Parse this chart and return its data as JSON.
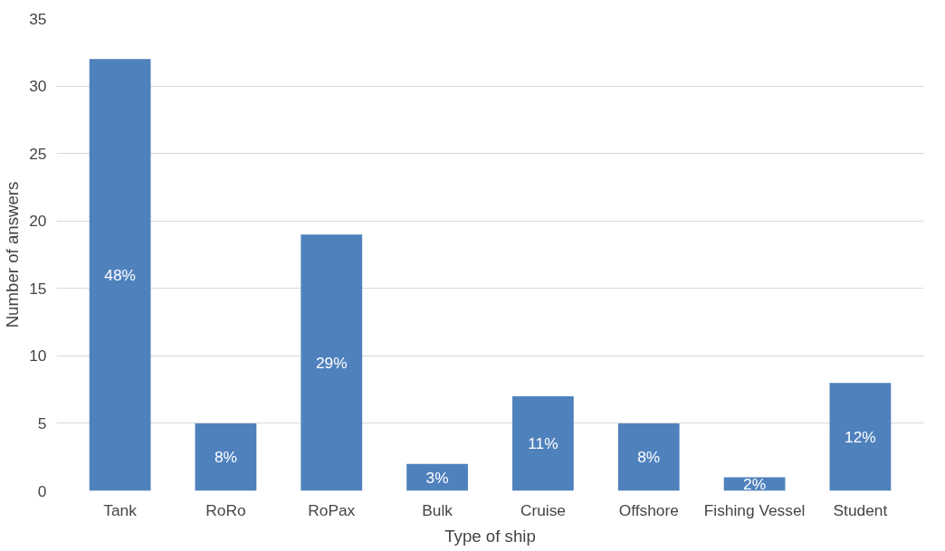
{
  "chart_data": {
    "type": "bar",
    "xlabel": "Type of ship",
    "ylabel": "Number of answers",
    "categories": [
      "Tank",
      "RoRo",
      "RoPax",
      "Bulk",
      "Cruise",
      "Offshore",
      "Fishing Vessel",
      "Student"
    ],
    "values": [
      32,
      5,
      19,
      2,
      7,
      5,
      1,
      8
    ],
    "annotations": [
      "48%",
      "8%",
      "29%",
      "3%",
      "11%",
      "8%",
      "2%",
      "12%"
    ],
    "color": "#4f81bd",
    "ylim": [
      0,
      35
    ],
    "yticks": [
      0,
      5,
      10,
      15,
      20,
      25,
      30,
      35
    ],
    "grid": "y"
  }
}
